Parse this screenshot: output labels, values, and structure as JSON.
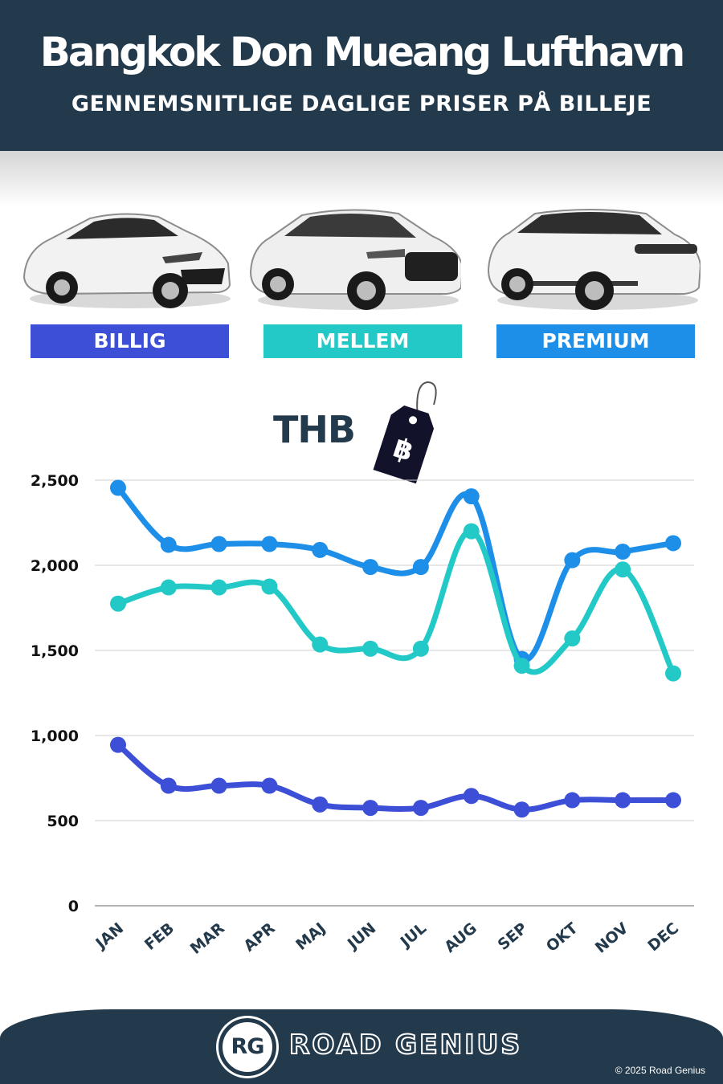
{
  "header": {
    "title": "Bangkok Don Mueang Lufthavn",
    "subtitle": "GENNEMSNITLIGE DAGLIGE PRISER PÅ BILLEJE"
  },
  "categories": [
    {
      "label": "BILLIG",
      "color": "#3c4fd6",
      "icon": "hatchback-car-icon"
    },
    {
      "label": "MELLEM",
      "color": "#22c9c6",
      "icon": "suv-car-icon"
    },
    {
      "label": "PREMIUM",
      "color": "#1e8fe8",
      "icon": "luxury-suv-car-icon"
    }
  ],
  "currency": {
    "label": "THB",
    "symbol": "฿",
    "icon": "price-tag-icon"
  },
  "chart_data": {
    "type": "line",
    "title": "",
    "xlabel": "",
    "ylabel": "",
    "categories": [
      "JAN",
      "FEB",
      "MAR",
      "APR",
      "MAJ",
      "JUN",
      "JUL",
      "AUG",
      "SEP",
      "OKT",
      "NOV",
      "DEC"
    ],
    "ylim": [
      0,
      2500
    ],
    "yticks": [
      0,
      500,
      1000,
      1500,
      2000,
      2500
    ],
    "ytick_labels": [
      "0",
      "500",
      "1,000",
      "1,500",
      "2,000",
      "2,500"
    ],
    "grid": true,
    "legend": "none",
    "series": [
      {
        "name": "PREMIUM",
        "color": "#1e8fe8",
        "values": [
          2455,
          2120,
          2125,
          2125,
          2090,
          1990,
          1990,
          2405,
          1450,
          2030,
          2080,
          2130
        ]
      },
      {
        "name": "MELLEM",
        "color": "#22c9c6",
        "values": [
          1775,
          1870,
          1870,
          1875,
          1535,
          1510,
          1510,
          2200,
          1410,
          1570,
          1975,
          1365
        ]
      },
      {
        "name": "BILLIG",
        "color": "#3c4fd6",
        "values": [
          945,
          705,
          705,
          705,
          595,
          575,
          575,
          645,
          565,
          620,
          620,
          620
        ]
      }
    ]
  },
  "footer": {
    "logo_text": "RG",
    "brand": "ROAD GENIUS",
    "copyright": "© 2025 Road Genius"
  }
}
